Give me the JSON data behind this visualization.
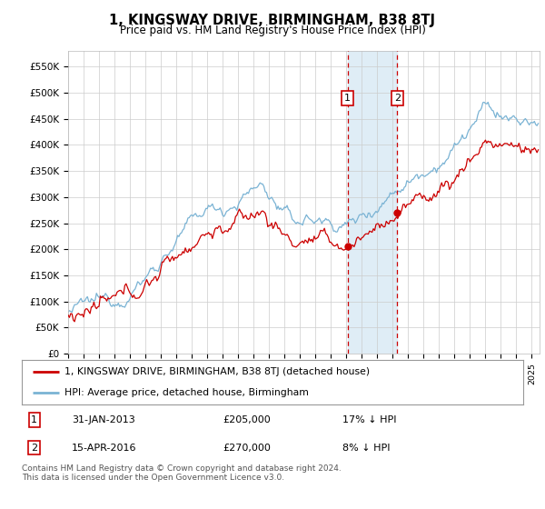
{
  "title": "1, KINGSWAY DRIVE, BIRMINGHAM, B38 8TJ",
  "subtitle": "Price paid vs. HM Land Registry's House Price Index (HPI)",
  "ylabel_ticks": [
    "£0",
    "£50K",
    "£100K",
    "£150K",
    "£200K",
    "£250K",
    "£300K",
    "£350K",
    "£400K",
    "£450K",
    "£500K",
    "£550K"
  ],
  "ytick_values": [
    0,
    50000,
    100000,
    150000,
    200000,
    250000,
    300000,
    350000,
    400000,
    450000,
    500000,
    550000
  ],
  "ylim": [
    0,
    580000
  ],
  "sale1": {
    "date_num": 2013.08,
    "price": 205000,
    "label": "1",
    "text": "31-JAN-2013",
    "amount": "£205,000",
    "note": "17% ↓ HPI"
  },
  "sale2": {
    "date_num": 2016.29,
    "price": 270000,
    "label": "2",
    "text": "15-APR-2016",
    "amount": "£270,000",
    "note": "8% ↓ HPI"
  },
  "hpi_color": "#7ab3d4",
  "sale_color": "#cc0000",
  "vline_color": "#cc0000",
  "shade_color": "#daeaf5",
  "legend_label_sale": "1, KINGSWAY DRIVE, BIRMINGHAM, B38 8TJ (detached house)",
  "legend_label_hpi": "HPI: Average price, detached house, Birmingham",
  "footer": "Contains HM Land Registry data © Crown copyright and database right 2024.\nThis data is licensed under the Open Government Licence v3.0.",
  "xmin": 1995,
  "xmax": 2025.5,
  "grid_color": "#cccccc",
  "background_color": "#ffffff"
}
